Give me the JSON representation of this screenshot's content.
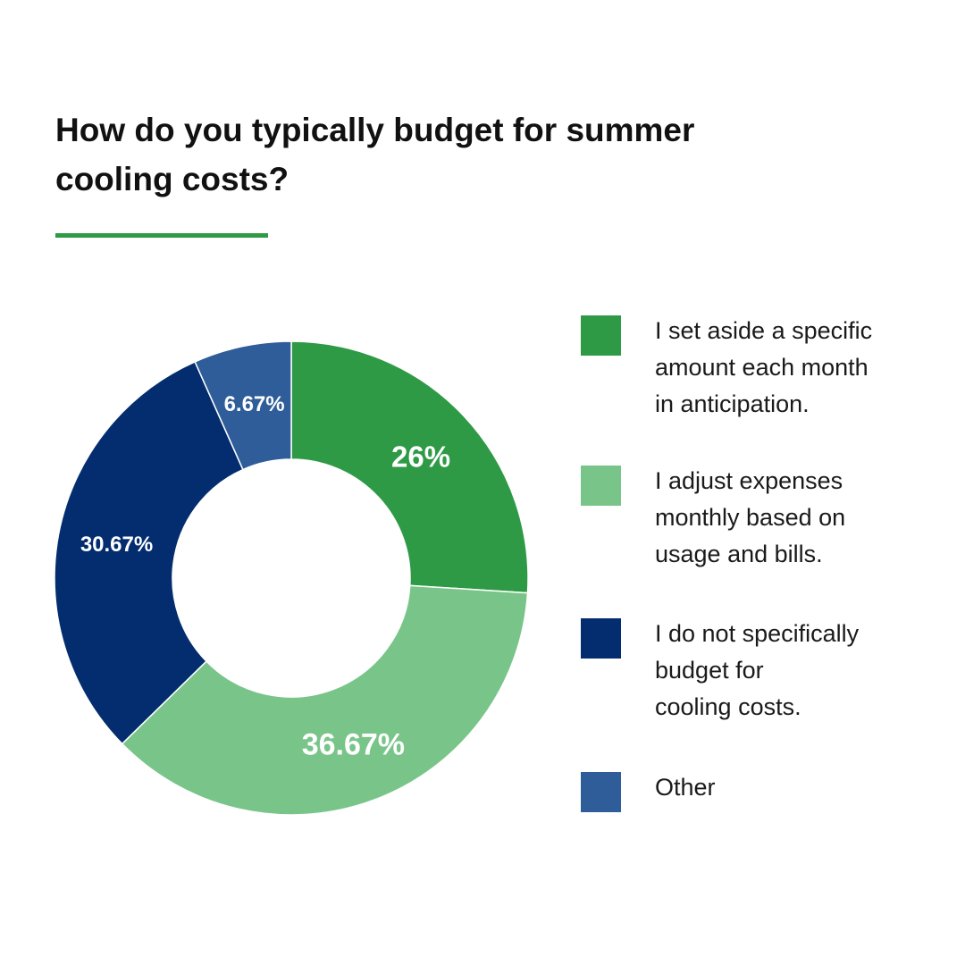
{
  "title": "How do you typically budget for summer cooling costs?",
  "accent_color": "#2e9a46",
  "chart_data": {
    "type": "pie",
    "style": "donut",
    "title": "How do you typically budget for summer cooling costs?",
    "legend_position": "right",
    "slices": [
      {
        "label": "I set aside a specific\namount each month\nin anticipation.",
        "value": 26,
        "display": "26%",
        "color": "#2e9a46"
      },
      {
        "label": "I adjust expenses\nmonthly based on\nusage and bills.",
        "value": 36.67,
        "display": "36.67%",
        "color": "#79c589"
      },
      {
        "label": "I do not specifically\nbudget for\ncooling costs.",
        "value": 30.67,
        "display": "30.67%",
        "color": "#032d6e"
      },
      {
        "label": "Other",
        "value": 6.67,
        "display": "6.67%",
        "color": "#2f5d99"
      }
    ]
  }
}
